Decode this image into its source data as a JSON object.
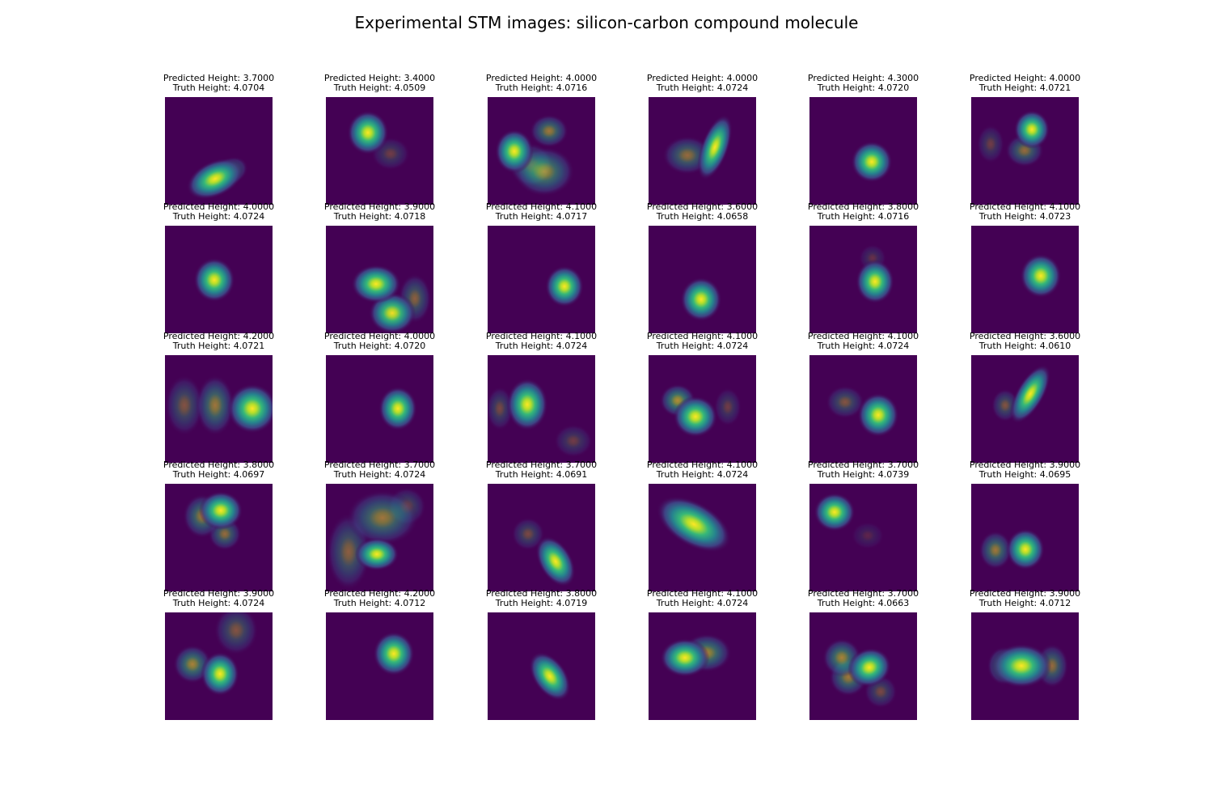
{
  "figure": {
    "title": "Experimental STM images: silicon-carbon compound molecule",
    "colormap": "viridis",
    "background_color": "#440154",
    "highlight_color": "#fde725"
  },
  "panels": [
    {
      "predicted": "Predicted Height: 3.7000",
      "truth": "Truth Height: 4.0704"
    },
    {
      "predicted": "Predicted Height: 3.4000",
      "truth": "Truth Height: 4.0509"
    },
    {
      "predicted": "Predicted Height: 4.0000",
      "truth": "Truth Height: 4.0716"
    },
    {
      "predicted": "Predicted Height: 4.0000",
      "truth": "Truth Height: 4.0724"
    },
    {
      "predicted": "Predicted Height: 4.3000",
      "truth": "Truth Height: 4.0720"
    },
    {
      "predicted": "Predicted Height: 4.0000",
      "truth": "Truth Height: 4.0721"
    },
    {
      "predicted": "Predicted Height: 4.0000",
      "truth": "Truth Height: 4.0724"
    },
    {
      "predicted": "Predicted Height: 3.9000",
      "truth": "Truth Height: 4.0718"
    },
    {
      "predicted": "Predicted Height: 4.1000",
      "truth": "Truth Height: 4.0717"
    },
    {
      "predicted": "Predicted Height: 3.6000",
      "truth": "Truth Height: 4.0658"
    },
    {
      "predicted": "Predicted Height: 3.8000",
      "truth": "Truth Height: 4.0716"
    },
    {
      "predicted": "Predicted Height: 4.1000",
      "truth": "Truth Height: 4.0723"
    },
    {
      "predicted": "Predicted Height: 4.2000",
      "truth": "Truth Height: 4.0721"
    },
    {
      "predicted": "Predicted Height: 4.0000",
      "truth": "Truth Height: 4.0720"
    },
    {
      "predicted": "Predicted Height: 4.1000",
      "truth": "Truth Height: 4.0724"
    },
    {
      "predicted": "Predicted Height: 4.1000",
      "truth": "Truth Height: 4.0724"
    },
    {
      "predicted": "Predicted Height: 4.1000",
      "truth": "Truth Height: 4.0724"
    },
    {
      "predicted": "Predicted Height: 3.6000",
      "truth": "Truth Height: 4.0610"
    },
    {
      "predicted": "Predicted Height: 3.8000",
      "truth": "Truth Height: 4.0697"
    },
    {
      "predicted": "Predicted Height: 3.7000",
      "truth": "Truth Height: 4.0724"
    },
    {
      "predicted": "Predicted Height: 3.7000",
      "truth": "Truth Height: 4.0691"
    },
    {
      "predicted": "Predicted Height: 4.1000",
      "truth": "Truth Height: 4.0724"
    },
    {
      "predicted": "Predicted Height: 3.7000",
      "truth": "Truth Height: 4.0739"
    },
    {
      "predicted": "Predicted Height: 3.9000",
      "truth": "Truth Height: 4.0695"
    },
    {
      "predicted": "Predicted Height: 3.9000",
      "truth": "Truth Height: 4.0724"
    },
    {
      "predicted": "Predicted Height: 4.2000",
      "truth": "Truth Height: 4.0712"
    },
    {
      "predicted": "Predicted Height: 3.8000",
      "truth": "Truth Height: 4.0719"
    },
    {
      "predicted": "Predicted Height: 4.1000",
      "truth": "Truth Height: 4.0724"
    },
    {
      "predicted": "Predicted Height: 3.7000",
      "truth": "Truth Height: 4.0663"
    },
    {
      "predicted": "Predicted Height: 3.9000",
      "truth": "Truth Height: 4.0712"
    }
  ]
}
